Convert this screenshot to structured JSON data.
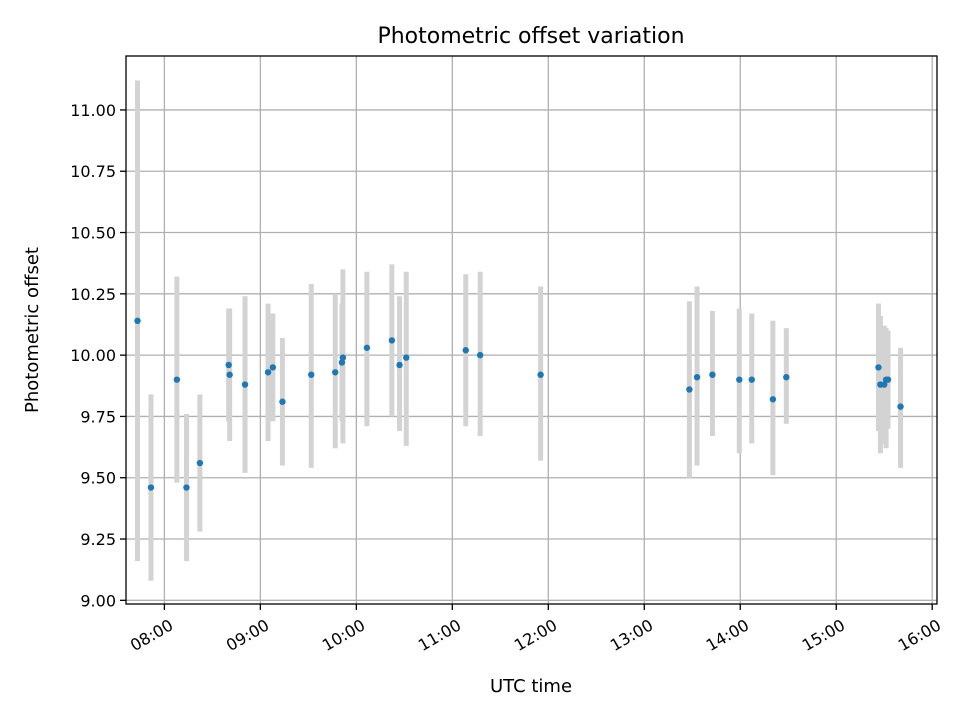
{
  "chart_data": {
    "type": "scatter",
    "title": "Photometric offset variation",
    "xlabel": "UTC time",
    "ylabel": "Photometric offset",
    "xlim": [
      7.6,
      16.05
    ],
    "ylim": [
      8.985,
      11.22
    ],
    "grid": true,
    "x_ticks": [
      {
        "value": 8,
        "label": "08:00"
      },
      {
        "value": 9,
        "label": "09:00"
      },
      {
        "value": 10,
        "label": "10:00"
      },
      {
        "value": 11,
        "label": "11:00"
      },
      {
        "value": 12,
        "label": "12:00"
      },
      {
        "value": 13,
        "label": "13:00"
      },
      {
        "value": 14,
        "label": "14:00"
      },
      {
        "value": 15,
        "label": "15:00"
      },
      {
        "value": 16,
        "label": "16:00"
      }
    ],
    "y_ticks": [
      {
        "value": 9.0,
        "label": "9.00"
      },
      {
        "value": 9.25,
        "label": "9.25"
      },
      {
        "value": 9.5,
        "label": "9.50"
      },
      {
        "value": 9.75,
        "label": "9.75"
      },
      {
        "value": 10.0,
        "label": "10.00"
      },
      {
        "value": 10.25,
        "label": "10.25"
      },
      {
        "value": 10.5,
        "label": "10.50"
      },
      {
        "value": 10.75,
        "label": "10.75"
      },
      {
        "value": 11.0,
        "label": "11.00"
      }
    ],
    "marker_color": "#1f77b4",
    "errorbar_color": "#d3d3d3",
    "points": [
      {
        "x": 7.72,
        "y": 10.14,
        "low": 9.16,
        "high": 11.12
      },
      {
        "x": 7.86,
        "y": 9.46,
        "low": 9.08,
        "high": 9.84
      },
      {
        "x": 8.13,
        "y": 9.9,
        "low": 9.48,
        "high": 10.32
      },
      {
        "x": 8.23,
        "y": 9.46,
        "low": 9.16,
        "high": 9.76
      },
      {
        "x": 8.37,
        "y": 9.56,
        "low": 9.28,
        "high": 9.84
      },
      {
        "x": 8.67,
        "y": 9.96,
        "low": 9.73,
        "high": 10.19
      },
      {
        "x": 8.68,
        "y": 9.92,
        "low": 9.65,
        "high": 10.19
      },
      {
        "x": 8.84,
        "y": 9.88,
        "low": 9.52,
        "high": 10.24
      },
      {
        "x": 9.08,
        "y": 9.93,
        "low": 9.65,
        "high": 10.21
      },
      {
        "x": 9.13,
        "y": 9.95,
        "low": 9.73,
        "high": 10.17
      },
      {
        "x": 9.23,
        "y": 9.81,
        "low": 9.55,
        "high": 10.07
      },
      {
        "x": 9.53,
        "y": 9.92,
        "low": 9.54,
        "high": 10.29
      },
      {
        "x": 9.78,
        "y": 9.93,
        "low": 9.62,
        "high": 10.25
      },
      {
        "x": 9.85,
        "y": 9.97,
        "low": 9.73,
        "high": 10.21
      },
      {
        "x": 9.86,
        "y": 9.99,
        "low": 9.64,
        "high": 10.35
      },
      {
        "x": 10.11,
        "y": 10.03,
        "low": 9.71,
        "high": 10.34
      },
      {
        "x": 10.37,
        "y": 10.06,
        "low": 9.75,
        "high": 10.37
      },
      {
        "x": 10.45,
        "y": 9.96,
        "low": 9.69,
        "high": 10.24
      },
      {
        "x": 10.52,
        "y": 9.99,
        "low": 9.63,
        "high": 10.34
      },
      {
        "x": 11.14,
        "y": 10.02,
        "low": 9.71,
        "high": 10.33
      },
      {
        "x": 11.29,
        "y": 10.0,
        "low": 9.67,
        "high": 10.34
      },
      {
        "x": 11.92,
        "y": 9.92,
        "low": 9.57,
        "high": 10.28
      },
      {
        "x": 13.47,
        "y": 9.86,
        "low": 9.5,
        "high": 10.22
      },
      {
        "x": 13.55,
        "y": 9.91,
        "low": 9.55,
        "high": 10.28
      },
      {
        "x": 13.71,
        "y": 9.92,
        "low": 9.67,
        "high": 10.18
      },
      {
        "x": 13.99,
        "y": 9.9,
        "low": 9.6,
        "high": 10.19
      },
      {
        "x": 14.12,
        "y": 9.9,
        "low": 9.64,
        "high": 10.17
      },
      {
        "x": 14.34,
        "y": 9.82,
        "low": 9.51,
        "high": 10.14
      },
      {
        "x": 14.48,
        "y": 9.91,
        "low": 9.72,
        "high": 10.11
      },
      {
        "x": 15.44,
        "y": 9.95,
        "low": 9.69,
        "high": 10.21
      },
      {
        "x": 15.46,
        "y": 9.88,
        "low": 9.6,
        "high": 10.16
      },
      {
        "x": 15.5,
        "y": 9.88,
        "low": 9.64,
        "high": 10.12
      },
      {
        "x": 15.52,
        "y": 9.9,
        "low": 9.62,
        "high": 10.11
      },
      {
        "x": 15.54,
        "y": 9.9,
        "low": 9.7,
        "high": 10.1
      },
      {
        "x": 15.67,
        "y": 9.79,
        "low": 9.54,
        "high": 10.03
      }
    ]
  }
}
